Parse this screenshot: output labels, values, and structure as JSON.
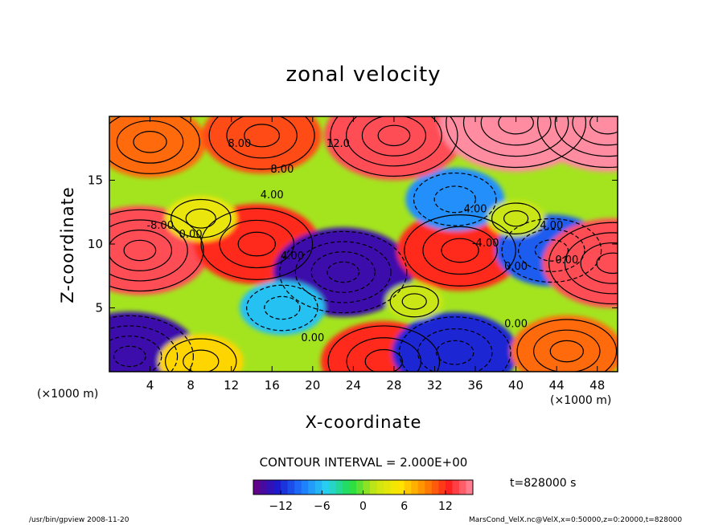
{
  "chart_data": {
    "type": "heatmap",
    "title": "zonal velocity",
    "xlabel": "X-coordinate",
    "ylabel": "Z-coordinate",
    "x_unit": "(×1000 m)",
    "xlim": [
      0,
      50
    ],
    "ylim": [
      0,
      20
    ],
    "x_ticks": [
      4,
      8,
      12,
      16,
      20,
      24,
      28,
      32,
      36,
      40,
      44,
      48
    ],
    "y_ticks": [
      5,
      10,
      15
    ],
    "contour_interval": "CONTOUR INTERVAL = 2.000E+00",
    "contour_labels": [
      "8.00",
      "12.0",
      "8.00",
      "4.00",
      "-8.00",
      "0.00",
      "4.00",
      "0.00",
      "4.00",
      "-4.00",
      "0.00",
      "4.00",
      "0.00",
      "0.00"
    ],
    "colorbar": {
      "range": [
        -16,
        16
      ],
      "ticks": [
        -12,
        -6,
        0,
        6,
        12
      ],
      "colors": [
        "#6a0080",
        "#1a1acd",
        "#1e78ff",
        "#28d2f0",
        "#22dd44",
        "#c8e614",
        "#ffe600",
        "#ff8c00",
        "#ff1e1e",
        "#ff8ca0"
      ]
    },
    "annotation": "t=828000 s",
    "footer_left": "/usr/bin/gpview  2008-11-20",
    "footer_right": "MarsCond_VelX.nc@VelX,x=0:50000,z=0:20000,t=828000",
    "field_features": [
      {
        "x": 3,
        "z": 9.5,
        "value": 14
      },
      {
        "x": 2,
        "z": 1.2,
        "value": -14
      },
      {
        "x": 9,
        "z": 0.8,
        "value": 6
      },
      {
        "x": 14.5,
        "z": 10,
        "value": 12
      },
      {
        "x": 23,
        "z": 7.8,
        "value": -14
      },
      {
        "x": 17,
        "z": 5,
        "value": -6
      },
      {
        "x": 27,
        "z": 0.8,
        "value": 12
      },
      {
        "x": 34.5,
        "z": 9.5,
        "value": 12
      },
      {
        "x": 34,
        "z": 13.5,
        "value": -8
      },
      {
        "x": 34,
        "z": 1.5,
        "value": -12
      },
      {
        "x": 43.5,
        "z": 9.5,
        "value": -10
      },
      {
        "x": 45,
        "z": 1.6,
        "value": 10
      },
      {
        "x": 49.5,
        "z": 8.5,
        "value": 14
      },
      {
        "x": 30,
        "z": 5.5,
        "value": 2
      },
      {
        "x": 9,
        "z": 12,
        "value": 4
      },
      {
        "x": 40,
        "z": 12,
        "value": 2
      },
      {
        "x": 4,
        "z": 18,
        "value": 10
      },
      {
        "x": 15,
        "z": 18.5,
        "value": 11
      },
      {
        "x": 28,
        "z": 18.5,
        "value": 14
      },
      {
        "x": 40,
        "z": 19.5,
        "value": 16
      },
      {
        "x": 49,
        "z": 19.5,
        "value": 16
      }
    ]
  }
}
